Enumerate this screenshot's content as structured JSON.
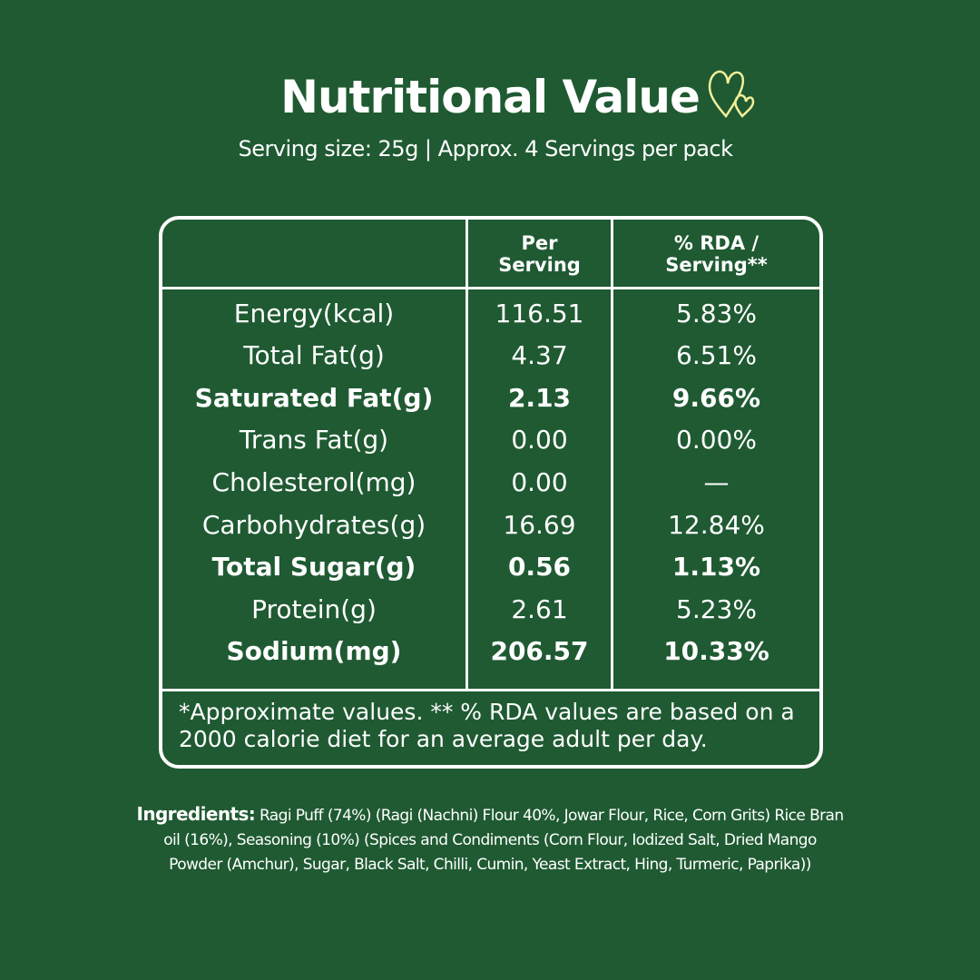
{
  "header": {
    "title": "Nutritional Value",
    "subtitle": "Serving size: 25g | Approx. 4 Servings per pack"
  },
  "table": {
    "columns": [
      "Per Serving",
      "% RDA / Serving**"
    ],
    "rows": [
      {
        "nutrient": "Energy(kcal)",
        "per_serving": "116.51",
        "rda": "5.83%",
        "bold": false
      },
      {
        "nutrient": "Total Fat(g)",
        "per_serving": "4.37",
        "rda": "6.51%",
        "bold": false
      },
      {
        "nutrient": "Saturated Fat(g)",
        "per_serving": "2.13",
        "rda": "9.66%",
        "bold": true
      },
      {
        "nutrient": "Trans Fat(g)",
        "per_serving": "0.00",
        "rda": "0.00%",
        "bold": false
      },
      {
        "nutrient": "Cholesterol(mg)",
        "per_serving": "0.00",
        "rda": "—",
        "bold": false
      },
      {
        "nutrient": "Carbohydrates(g)",
        "per_serving": "16.69",
        "rda": "12.84%",
        "bold": false
      },
      {
        "nutrient": "Total Sugar(g)",
        "per_serving": "0.56",
        "rda": "1.13%",
        "bold": true
      },
      {
        "nutrient": "Protein(g)",
        "per_serving": "2.61",
        "rda": "5.23%",
        "bold": false
      },
      {
        "nutrient": "Sodium(mg)",
        "per_serving": "206.57",
        "rda": "10.33%",
        "bold": true
      }
    ],
    "footnote": "*Approximate values. ** % RDA values are based on a 2000 calorie diet for an average adult per day."
  },
  "ingredients": {
    "label": "Ingredients:",
    "text": "Ragi Puff (74%)  (Ragi (Nachni) Flour 40%, Jowar Flour, Rice, Corn Grits) Rice Bran oil (16%), Seasoning (10%) (Spices and Condiments (Corn Flour, Iodized Salt, Dried Mango Powder (Amchur), Sugar, Black Salt, Chilli, Cumin, Yeast Extract, Hing, Turmeric, Paprika))"
  }
}
